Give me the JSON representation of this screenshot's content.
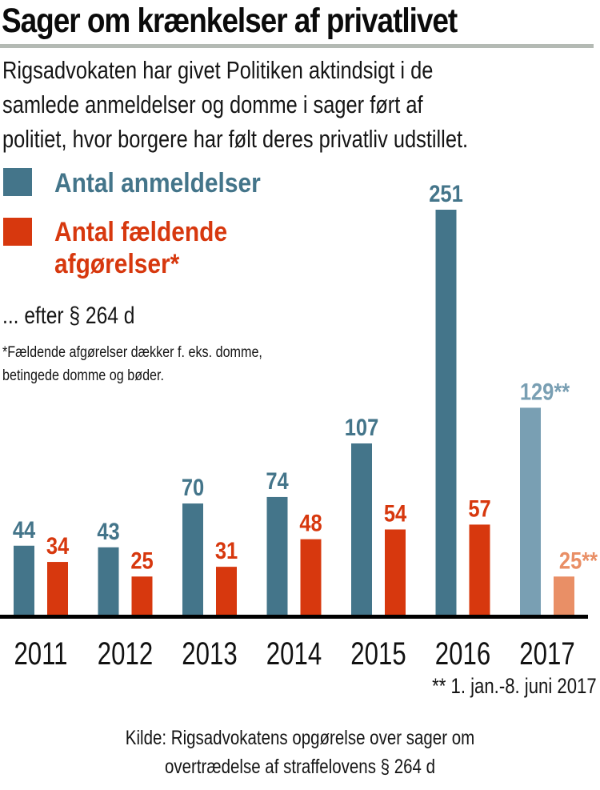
{
  "title": "Sager om krænkelser af privatlivet",
  "intro": [
    "Rigsadvokaten har givet Politiken aktindsigt i de",
    "samlede anmeldelser og domme i sager ført af",
    "politiet, hvor borgere har følt deres privatliv udstillet."
  ],
  "legend": {
    "reports": {
      "label": "Antal anmeldelser"
    },
    "convictions": {
      "label_line1": "Antal fældende",
      "label_line2": "afgørelser*"
    }
  },
  "subnote": "... efter § 264 d",
  "footnote": [
    "*Fældende afgørelser dækker f. eks. domme,",
    "betingede domme og bøder."
  ],
  "date_note": "** 1. jan.-8. juni 2017",
  "source": [
    "Kilde: Rigsadvokatens opgørelse over sager om",
    "overtrædelse af straffelovens § 264 d"
  ],
  "colors": {
    "reports": "#44758a",
    "convictions": "#d7380e",
    "reports_partial": "#799fb3",
    "convictions_partial": "#e98f66",
    "divider": "#b4bab4",
    "axis": "#000000"
  },
  "chart_data": {
    "type": "bar",
    "title": "Sager om krænkelser af privatlivet",
    "xlabel": "",
    "ylabel": "",
    "categories": [
      "2011",
      "2012",
      "2013",
      "2014",
      "2015",
      "2016",
      "2017"
    ],
    "series": [
      {
        "name": "Antal anmeldelser",
        "values": [
          44,
          43,
          70,
          74,
          107,
          251,
          129
        ],
        "labels": [
          "44",
          "43",
          "70",
          "74",
          "107",
          "251",
          "129**"
        ]
      },
      {
        "name": "Antal fældende afgørelser*",
        "values": [
          34,
          25,
          31,
          48,
          54,
          57,
          25
        ],
        "labels": [
          "34",
          "25",
          "31",
          "48",
          "54",
          "57",
          "25**"
        ]
      }
    ],
    "partial_categories": [
      "2017"
    ],
    "ylim": [
      0,
      251
    ],
    "grid": false,
    "legend": "top-left"
  }
}
